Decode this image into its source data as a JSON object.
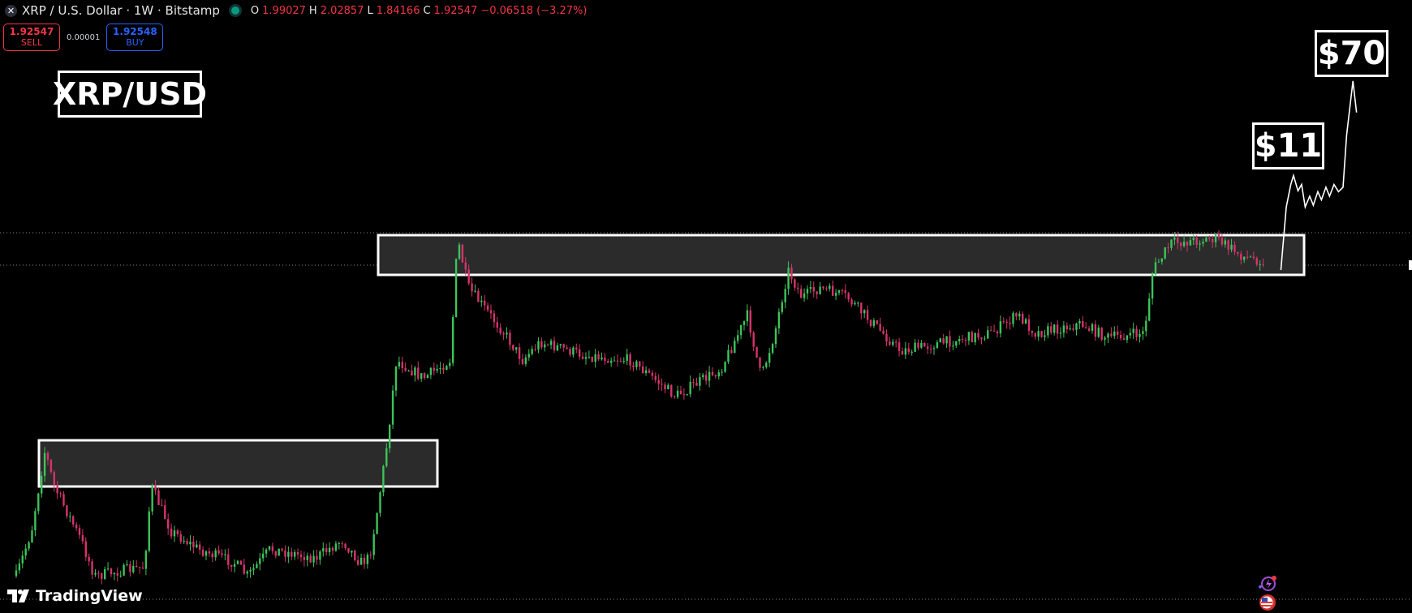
{
  "header": {
    "symbol_title": "XRP / U.S. Dollar · 1W · Bitstamp",
    "ohlc": {
      "open_label": "O",
      "open": "1.99027",
      "high_label": "H",
      "high": "2.02857",
      "low_label": "L",
      "low": "1.84166",
      "close_label": "C",
      "close": "1.92547",
      "change": "−0.06518 (−3.27%)"
    }
  },
  "trade": {
    "sell_price": "1.92547",
    "sell_label": "SELL",
    "spread": "0.00001",
    "buy_price": "1.92548",
    "buy_label": "BUY"
  },
  "annotations": {
    "pair_label": "XRP/USD",
    "target_1": "$11",
    "target_2": "$70"
  },
  "branding": {
    "logo_text": "TradingView"
  },
  "colors": {
    "up": "#3cc45a",
    "down": "#d6336c",
    "background": "#000000",
    "zone_fill": "#2b2b2b"
  },
  "icons": [
    "close-icon",
    "market-status-icon",
    "ai-spark-icon",
    "us-flag-icon"
  ]
}
